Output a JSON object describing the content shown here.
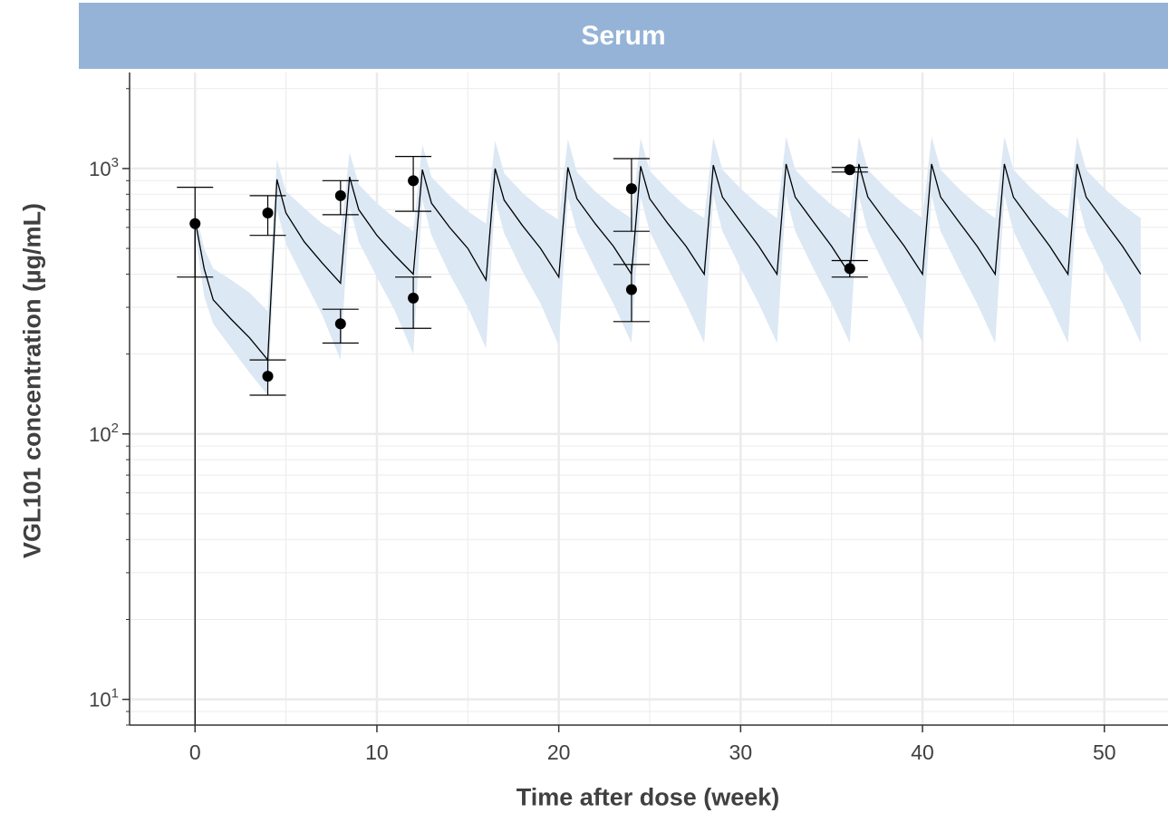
{
  "chart_data": {
    "type": "line",
    "title": "Serum",
    "xlabel": "Time after dose (week)",
    "ylabel": "VGL101 concentration (µg/mL)",
    "x_scale": "linear",
    "y_scale": "log10",
    "xlim": [
      -3.6,
      53.5
    ],
    "ylim": [
      8,
      2300
    ],
    "x_ticks": [
      0,
      10,
      20,
      30,
      40,
      50
    ],
    "y_ticks": [
      {
        "value": 10,
        "base": "10",
        "exp": "1"
      },
      {
        "value": 100,
        "base": "10",
        "exp": "2"
      },
      {
        "value": 1000,
        "base": "10",
        "exp": "3"
      }
    ],
    "grid": true,
    "legend": "none",
    "colors": {
      "panel_strip": "#95b3d7",
      "band": "#dce8f4",
      "line": "#000000",
      "points": "#000000",
      "grid": "#ebebeb"
    },
    "dose_times": [
      0,
      4,
      8,
      12,
      16,
      20,
      24,
      28,
      32,
      36,
      40,
      44,
      48
    ],
    "end_time": 52,
    "series": [
      {
        "kind": "line",
        "description_of": "model prediction (median)",
        "x": [
          0,
          0.5,
          1,
          2,
          3,
          4,
          4.5,
          5,
          6,
          7,
          8,
          8.5,
          9,
          10,
          11,
          12,
          12.5,
          13,
          14,
          15,
          16,
          16.5,
          17,
          18,
          19,
          20,
          20.5,
          21,
          22,
          23,
          24,
          24.5,
          25,
          26,
          27,
          28,
          28.5,
          29,
          30,
          31,
          32,
          32.5,
          33,
          34,
          35,
          36,
          36.5,
          37,
          38,
          39,
          40,
          40.5,
          41,
          42,
          43,
          44,
          44.5,
          45,
          46,
          47,
          48,
          48.5,
          49,
          50,
          51,
          52
        ],
        "y": [
          640,
          420,
          320,
          270,
          230,
          190,
          910,
          680,
          530,
          440,
          370,
          930,
          700,
          560,
          470,
          400,
          990,
          740,
          600,
          500,
          380,
          1000,
          760,
          610,
          500,
          390,
          1010,
          770,
          620,
          510,
          400,
          1020,
          770,
          620,
          510,
          400,
          1030,
          780,
          630,
          510,
          400,
          1040,
          780,
          630,
          510,
          400,
          1040,
          780,
          630,
          510,
          400,
          1040,
          780,
          630,
          510,
          400,
          1040,
          780,
          630,
          510,
          400,
          1040,
          780,
          630,
          510,
          400
        ]
      },
      {
        "kind": "band",
        "description_of": "prediction interval",
        "x": [
          0,
          0.5,
          1,
          2,
          3,
          4,
          4.5,
          5,
          6,
          7,
          8,
          8.5,
          9,
          10,
          11,
          12,
          12.5,
          13,
          14,
          15,
          16,
          16.5,
          17,
          18,
          19,
          20,
          20.5,
          21,
          22,
          23,
          24,
          24.5,
          25,
          26,
          27,
          28,
          28.5,
          29,
          30,
          31,
          32,
          32.5,
          33,
          34,
          35,
          36,
          36.5,
          37,
          38,
          39,
          40,
          40.5,
          41,
          42,
          43,
          44,
          44.5,
          45,
          46,
          47,
          48,
          48.5,
          49,
          50,
          51,
          52
        ],
        "lower": [
          580,
          330,
          260,
          210,
          170,
          140,
          700,
          520,
          380,
          280,
          190,
          720,
          530,
          390,
          290,
          200,
          760,
          560,
          400,
          300,
          210,
          770,
          570,
          410,
          310,
          215,
          780,
          580,
          420,
          310,
          220,
          780,
          580,
          420,
          310,
          220,
          790,
          580,
          420,
          310,
          220,
          790,
          580,
          420,
          310,
          220,
          790,
          580,
          420,
          310,
          220,
          790,
          580,
          420,
          310,
          220,
          790,
          580,
          420,
          310,
          220,
          790,
          580,
          420,
          310,
          220
        ],
        "upper": [
          700,
          500,
          420,
          380,
          340,
          290,
          1080,
          820,
          710,
          620,
          560,
          1150,
          870,
          740,
          650,
          580,
          1230,
          930,
          790,
          690,
          620,
          1270,
          960,
          810,
          710,
          640,
          1290,
          970,
          820,
          720,
          650,
          1300,
          980,
          830,
          720,
          650,
          1310,
          990,
          840,
          730,
          650,
          1320,
          990,
          840,
          730,
          650,
          1320,
          990,
          840,
          730,
          650,
          1320,
          990,
          840,
          730,
          650,
          1320,
          990,
          840,
          730,
          650,
          1320,
          990,
          840,
          730,
          650
        ]
      },
      {
        "kind": "points",
        "description_of": "observed mean with error bars",
        "points": [
          {
            "x": 0,
            "y": 620,
            "lo": 390,
            "hi": 850
          },
          {
            "x": 4,
            "y": 165,
            "lo": 140,
            "hi": 190
          },
          {
            "x": 4,
            "y": 680,
            "lo": 560,
            "hi": 790
          },
          {
            "x": 8,
            "y": 260,
            "lo": 220,
            "hi": 295
          },
          {
            "x": 8,
            "y": 790,
            "lo": 670,
            "hi": 900
          },
          {
            "x": 12,
            "y": 325,
            "lo": 250,
            "hi": 390
          },
          {
            "x": 12,
            "y": 900,
            "lo": 690,
            "hi": 1110
          },
          {
            "x": 24,
            "y": 350,
            "lo": 265,
            "hi": 435
          },
          {
            "x": 24,
            "y": 840,
            "lo": 580,
            "hi": 1090
          },
          {
            "x": 36,
            "y": 420,
            "lo": 390,
            "hi": 450
          },
          {
            "x": 36,
            "y": 990,
            "lo": 970,
            "hi": 1010
          }
        ]
      }
    ]
  }
}
